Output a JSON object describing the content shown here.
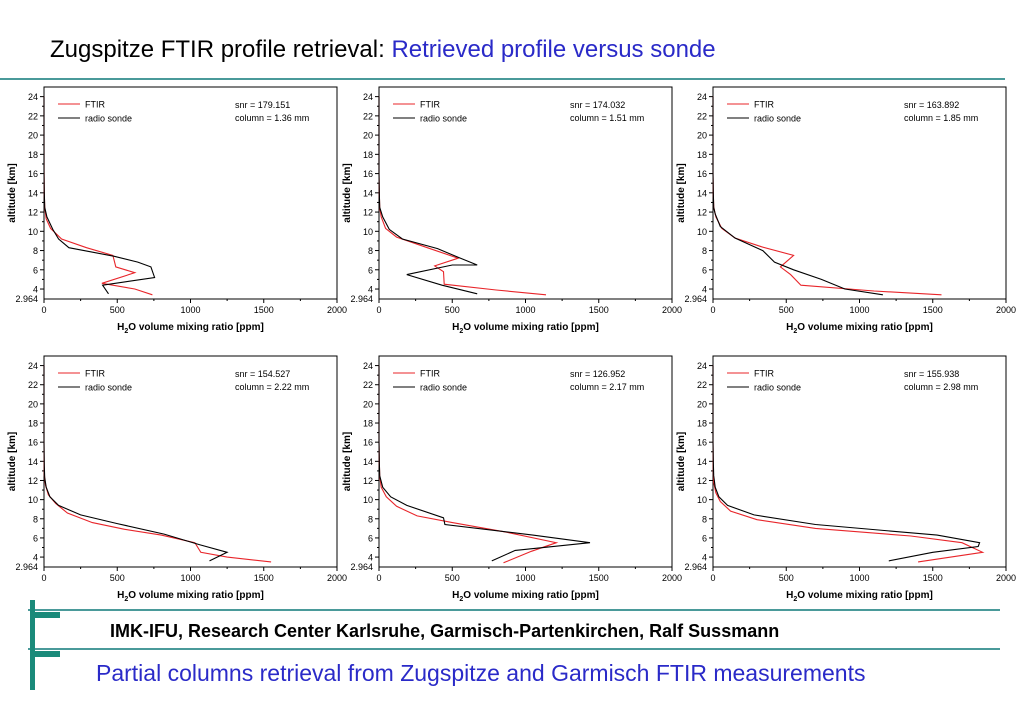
{
  "header": {
    "title_black": "Zugspitze FTIR profile retrieval:",
    "title_blue": "Retrieved profile versus sonde"
  },
  "footer": {
    "org": "IMK-IFU, Research Center Karlsruhe, Garmisch-Partenkirchen, Ralf Sussmann",
    "subtitle": "Partial columns retrieval from Zugspitze and Garmisch FTIR measurements"
  },
  "colors": {
    "ftir": "#e8252a",
    "sonde": "#000000",
    "title_blue": "#2a2ac8",
    "accent": "#1a8a7a"
  },
  "chart_data": [
    {
      "type": "line",
      "ylabel": "altitude [km]",
      "xlabel_prefix": "H",
      "xlabel_sub": "2",
      "xlabel_rest": "O volume mixing ratio [ppm]",
      "xlim": [
        0,
        2000
      ],
      "ylim": [
        2.964,
        25
      ],
      "xticks": [
        "0",
        "500",
        "1000",
        "1500",
        "2000"
      ],
      "yticks": [
        "4",
        "6",
        "8",
        "10",
        "12",
        "14",
        "16",
        "18",
        "20",
        "22",
        "24"
      ],
      "ybottom_label": "2.964",
      "legend": [
        "FTIR",
        "radio sonde"
      ],
      "annotation": [
        "snr = 179.151",
        "column = 1.36 mm"
      ],
      "series": [
        {
          "name": "FTIR",
          "points": [
            [
              740,
              3.4
            ],
            [
              620,
              4
            ],
            [
              395,
              4.6
            ],
            [
              620,
              5.7
            ],
            [
              490,
              6.3
            ],
            [
              470,
              7.5
            ],
            [
              290,
              8.3
            ],
            [
              120,
              9.2
            ],
            [
              45,
              10.3
            ],
            [
              15,
              11.3
            ],
            [
              5,
              12.5
            ],
            [
              2,
              14
            ],
            [
              1,
              16
            ],
            [
              0,
              20
            ],
            [
              0,
              24
            ]
          ]
        },
        {
          "name": "radio sonde",
          "points": [
            [
              440,
              3.5
            ],
            [
              400,
              4.4
            ],
            [
              755,
              5.2
            ],
            [
              730,
              6.3
            ],
            [
              640,
              6.8
            ],
            [
              480,
              7.4
            ],
            [
              170,
              8.3
            ],
            [
              100,
              9.2
            ],
            [
              60,
              10.2
            ],
            [
              20,
              11.5
            ],
            [
              5,
              12.5
            ],
            [
              2,
              14
            ],
            [
              0,
              16
            ],
            [
              0,
              20
            ],
            [
              0,
              24
            ]
          ]
        }
      ]
    },
    {
      "type": "line",
      "ylabel": "altitude [km]",
      "xlabel_prefix": "H",
      "xlabel_sub": "2",
      "xlabel_rest": "O volume mixing ratio [ppm]",
      "xlim": [
        0,
        2000
      ],
      "ylim": [
        2.964,
        25
      ],
      "xticks": [
        "0",
        "500",
        "1000",
        "1500",
        "2000"
      ],
      "yticks": [
        "4",
        "6",
        "8",
        "10",
        "12",
        "14",
        "16",
        "18",
        "20",
        "22",
        "24"
      ],
      "ybottom_label": "2.964",
      "legend": [
        "FTIR",
        "radio sonde"
      ],
      "annotation": [
        "snr = 174.032",
        "column = 1.51 mm"
      ],
      "series": [
        {
          "name": "FTIR",
          "points": [
            [
              1140,
              3.4
            ],
            [
              800,
              3.9
            ],
            [
              445,
              4.5
            ],
            [
              440,
              5.8
            ],
            [
              380,
              6.4
            ],
            [
              540,
              7.2
            ],
            [
              330,
              8.3
            ],
            [
              120,
              9.4
            ],
            [
              45,
              10.3
            ],
            [
              15,
              11.5
            ],
            [
              5,
              12.5
            ],
            [
              2,
              14
            ],
            [
              0,
              16
            ],
            [
              0,
              20
            ],
            [
              0,
              24
            ]
          ]
        },
        {
          "name": "radio sonde",
          "points": [
            [
              670,
              3.5
            ],
            [
              430,
              4.4
            ],
            [
              190,
              5.5
            ],
            [
              500,
              6.5
            ],
            [
              670,
              6.5
            ],
            [
              540,
              7.3
            ],
            [
              400,
              8.2
            ],
            [
              160,
              9.2
            ],
            [
              70,
              10.2
            ],
            [
              25,
              11.5
            ],
            [
              5,
              12.5
            ],
            [
              2,
              14
            ],
            [
              0,
              16
            ],
            [
              0,
              20
            ],
            [
              0,
              24
            ]
          ]
        }
      ]
    },
    {
      "type": "line",
      "ylabel": "altitude [km]",
      "xlabel_prefix": "H",
      "xlabel_sub": "2",
      "xlabel_rest": "O volume mixing ratio [ppm]",
      "xlim": [
        0,
        2000
      ],
      "ylim": [
        2.964,
        25
      ],
      "xticks": [
        "0",
        "500",
        "1000",
        "1500",
        "2000"
      ],
      "yticks": [
        "4",
        "6",
        "8",
        "10",
        "12",
        "14",
        "16",
        "18",
        "20",
        "22",
        "24"
      ],
      "ybottom_label": "2.964",
      "legend": [
        "FTIR",
        "radio sonde"
      ],
      "annotation": [
        "snr = 163.892",
        "column = 1.85 mm"
      ],
      "series": [
        {
          "name": "FTIR",
          "points": [
            [
              1560,
              3.4
            ],
            [
              1100,
              3.8
            ],
            [
              600,
              4.4
            ],
            [
              530,
              5.5
            ],
            [
              460,
              6.3
            ],
            [
              550,
              7.5
            ],
            [
              330,
              8.4
            ],
            [
              150,
              9.3
            ],
            [
              60,
              10.3
            ],
            [
              20,
              11.5
            ],
            [
              5,
              12.5
            ],
            [
              2,
              14
            ],
            [
              0,
              16
            ],
            [
              0,
              20
            ],
            [
              0,
              24
            ]
          ]
        },
        {
          "name": "radio sonde",
          "points": [
            [
              1160,
              3.4
            ],
            [
              900,
              4.0
            ],
            [
              740,
              5.0
            ],
            [
              550,
              6.0
            ],
            [
              420,
              6.8
            ],
            [
              340,
              8.0
            ],
            [
              150,
              9.3
            ],
            [
              50,
              10.5
            ],
            [
              15,
              11.8
            ],
            [
              5,
              12.5
            ],
            [
              2,
              14
            ],
            [
              0,
              16
            ],
            [
              0,
              20
            ],
            [
              0,
              24
            ]
          ]
        }
      ]
    },
    {
      "type": "line",
      "ylabel": "altitude [km]",
      "xlabel_prefix": "H",
      "xlabel_sub": "2",
      "xlabel_rest": "O volume mixing ratio [ppm]",
      "xlim": [
        0,
        2000
      ],
      "ylim": [
        2.964,
        25
      ],
      "xticks": [
        "0",
        "500",
        "1000",
        "1500",
        "2000"
      ],
      "yticks": [
        "4",
        "6",
        "8",
        "10",
        "12",
        "14",
        "16",
        "18",
        "20",
        "22",
        "24"
      ],
      "ybottom_label": "2.964",
      "legend": [
        "FTIR",
        "radio sonde"
      ],
      "annotation": [
        "snr = 154.527",
        "column = 2.22 mm"
      ],
      "series": [
        {
          "name": "FTIR",
          "points": [
            [
              1550,
              3.5
            ],
            [
              1250,
              4
            ],
            [
              1070,
              4.5
            ],
            [
              1030,
              5.5
            ],
            [
              800,
              6.3
            ],
            [
              550,
              6.9
            ],
            [
              330,
              7.6
            ],
            [
              160,
              8.6
            ],
            [
              80,
              9.6
            ],
            [
              30,
              10.5
            ],
            [
              10,
              11.5
            ],
            [
              3,
              12.5
            ],
            [
              1,
              14
            ],
            [
              0,
              16
            ],
            [
              0,
              20
            ],
            [
              0,
              24
            ]
          ]
        },
        {
          "name": "radio sonde",
          "points": [
            [
              1130,
              3.6
            ],
            [
              1250,
              4.5
            ],
            [
              1060,
              5.3
            ],
            [
              820,
              6.4
            ],
            [
              500,
              7.5
            ],
            [
              250,
              8.4
            ],
            [
              100,
              9.4
            ],
            [
              40,
              10.3
            ],
            [
              15,
              11.3
            ],
            [
              5,
              12.3
            ],
            [
              2,
              13.5
            ],
            [
              0,
              16
            ],
            [
              0,
              20
            ],
            [
              0,
              24
            ]
          ]
        }
      ]
    },
    {
      "type": "line",
      "ylabel": "altitude [km]",
      "xlabel_prefix": "H",
      "xlabel_sub": "2",
      "xlabel_rest": "O volume mixing ratio [ppm]",
      "xlim": [
        0,
        2000
      ],
      "ylim": [
        2.964,
        25
      ],
      "xticks": [
        "0",
        "500",
        "1000",
        "1500",
        "2000"
      ],
      "yticks": [
        "4",
        "6",
        "8",
        "10",
        "12",
        "14",
        "16",
        "18",
        "20",
        "22",
        "24"
      ],
      "ybottom_label": "2.964",
      "legend": [
        "FTIR",
        "radio sonde"
      ],
      "annotation": [
        "snr = 126.952",
        "column = 2.17 mm"
      ],
      "series": [
        {
          "name": "FTIR",
          "points": [
            [
              850,
              3.4
            ],
            [
              1040,
              4.6
            ],
            [
              1210,
              5.5
            ],
            [
              870,
              6.6
            ],
            [
              500,
              7.6
            ],
            [
              260,
              8.3
            ],
            [
              120,
              9.3
            ],
            [
              50,
              10.3
            ],
            [
              15,
              11.3
            ],
            [
              5,
              12.5
            ],
            [
              2,
              14
            ],
            [
              0,
              16
            ],
            [
              0,
              20
            ],
            [
              0,
              24
            ]
          ]
        },
        {
          "name": "radio sonde",
          "points": [
            [
              770,
              3.6
            ],
            [
              930,
              4.7
            ],
            [
              1440,
              5.5
            ],
            [
              1050,
              6.3
            ],
            [
              450,
              7.4
            ],
            [
              440,
              8.1
            ],
            [
              190,
              9.4
            ],
            [
              80,
              10.3
            ],
            [
              25,
              11.3
            ],
            [
              5,
              12.5
            ],
            [
              2,
              14
            ],
            [
              0,
              16
            ],
            [
              0,
              20
            ],
            [
              0,
              24
            ]
          ]
        }
      ]
    },
    {
      "type": "line",
      "ylabel": "altitude [km]",
      "xlabel_prefix": "H",
      "xlabel_sub": "2",
      "xlabel_rest": "O volume mixing ratio [ppm]",
      "xlim": [
        0,
        2000
      ],
      "ylim": [
        2.964,
        25
      ],
      "xticks": [
        "0",
        "500",
        "1000",
        "1500",
        "2000"
      ],
      "yticks": [
        "4",
        "6",
        "8",
        "10",
        "12",
        "14",
        "16",
        "18",
        "20",
        "22",
        "24"
      ],
      "ybottom_label": "2.964",
      "legend": [
        "FTIR",
        "radio sonde"
      ],
      "annotation": [
        "snr = 155.938",
        "column = 2.98 mm"
      ],
      "series": [
        {
          "name": "FTIR",
          "points": [
            [
              1400,
              3.5
            ],
            [
              1840,
              4.5
            ],
            [
              1700,
              5.5
            ],
            [
              1350,
              6.2
            ],
            [
              700,
              7.0
            ],
            [
              300,
              7.9
            ],
            [
              120,
              8.8
            ],
            [
              50,
              9.8
            ],
            [
              20,
              10.7
            ],
            [
              5,
              11.8
            ],
            [
              2,
              13
            ],
            [
              0,
              16
            ],
            [
              0,
              20
            ],
            [
              0,
              24
            ]
          ]
        },
        {
          "name": "radio sonde",
          "points": [
            [
              1200,
              3.6
            ],
            [
              1500,
              4.5
            ],
            [
              1810,
              5.1
            ],
            [
              1820,
              5.5
            ],
            [
              1530,
              6.3
            ],
            [
              700,
              7.4
            ],
            [
              280,
              8.4
            ],
            [
              100,
              9.4
            ],
            [
              40,
              10.3
            ],
            [
              15,
              11.3
            ],
            [
              5,
              12.5
            ],
            [
              2,
              14
            ],
            [
              0,
              16
            ],
            [
              0,
              20
            ],
            [
              0,
              24
            ]
          ]
        }
      ]
    }
  ]
}
